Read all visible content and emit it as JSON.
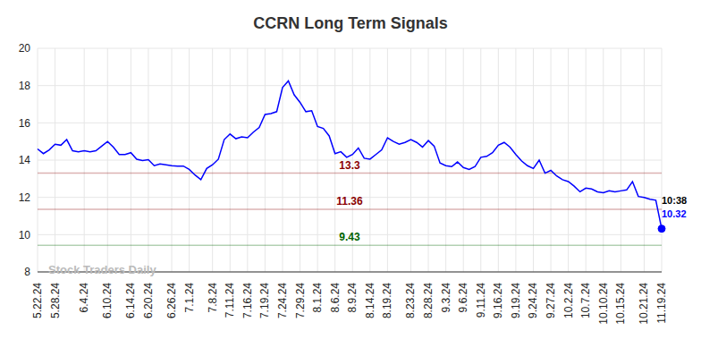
{
  "chart_data": {
    "type": "line",
    "title": "CCRN Long Term Signals",
    "watermark": "Stock Traders Daily",
    "time_label": "10:38",
    "categories": [
      "5.22.24",
      null,
      null,
      "5.28.24",
      null,
      null,
      null,
      null,
      "6.4.24",
      null,
      null,
      null,
      "6.10.24",
      null,
      null,
      null,
      "6.14.24",
      null,
      null,
      "6.20.24",
      null,
      null,
      null,
      "6.26.24",
      null,
      null,
      "7.1.24",
      null,
      null,
      null,
      "7.8.24",
      null,
      null,
      "7.11.24",
      null,
      null,
      "7.16.24",
      null,
      null,
      "7.19.24",
      null,
      null,
      "7.24.24",
      null,
      null,
      "7.29.24",
      null,
      null,
      "8.1.24",
      null,
      null,
      "8.6.24",
      null,
      null,
      "8.9.24",
      null,
      null,
      "8.14.24",
      null,
      null,
      "8.19.24",
      null,
      null,
      null,
      "8.23.24",
      null,
      null,
      "8.28.24",
      null,
      null,
      "9.3.24",
      null,
      null,
      "9.6.24",
      null,
      null,
      "9.11.24",
      null,
      null,
      "9.16.24",
      null,
      null,
      "9.19.24",
      null,
      null,
      "9.24.24",
      null,
      null,
      "9.27.24",
      null,
      null,
      "10.2.24",
      null,
      null,
      "10.7.24",
      null,
      null,
      "10.10.24",
      null,
      null,
      "10.15.24",
      null,
      null,
      null,
      "10.21.24",
      null,
      null,
      "11.19.24"
    ],
    "values": [
      14.6,
      14.35,
      14.55,
      14.85,
      14.8,
      15.1,
      14.5,
      14.45,
      14.5,
      14.45,
      14.5,
      14.75,
      15.0,
      14.7,
      14.3,
      14.3,
      14.4,
      14.05,
      13.98,
      14.02,
      13.7,
      13.8,
      13.75,
      13.7,
      13.68,
      13.68,
      13.5,
      13.2,
      12.95,
      13.55,
      13.75,
      14.05,
      15.1,
      15.4,
      15.15,
      15.25,
      15.2,
      15.5,
      15.75,
      16.45,
      16.5,
      16.6,
      17.9,
      18.25,
      17.5,
      17.1,
      16.6,
      16.65,
      15.8,
      15.7,
      15.3,
      14.35,
      14.45,
      14.15,
      14.3,
      14.65,
      14.1,
      14.05,
      14.3,
      14.55,
      15.2,
      15.0,
      14.85,
      14.95,
      15.1,
      14.95,
      14.7,
      15.05,
      14.75,
      13.85,
      13.7,
      13.65,
      13.9,
      13.6,
      13.5,
      13.65,
      14.15,
      14.2,
      14.4,
      14.8,
      14.95,
      14.7,
      14.3,
      13.95,
      13.7,
      13.55,
      14.0,
      13.3,
      13.45,
      13.15,
      12.95,
      12.85,
      12.6,
      12.3,
      12.5,
      12.45,
      12.3,
      12.25,
      12.35,
      12.3,
      12.35,
      12.4,
      12.85,
      12.05,
      12.0,
      11.9,
      11.85,
      10.32
    ],
    "color": "#0000ff",
    "ylim": [
      8,
      20
    ],
    "yticks": [
      8,
      10,
      12,
      14,
      16,
      18,
      20
    ],
    "grid": true,
    "annotations": [
      {
        "y": 13.3,
        "color": "#8b0000"
      },
      {
        "y": 11.36,
        "color": "#8b0000"
      },
      {
        "y": 9.43,
        "color": "#006400"
      }
    ]
  }
}
